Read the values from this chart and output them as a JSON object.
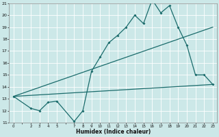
{
  "xlabel": "Humidex (Indice chaleur)",
  "background_color": "#cce8e8",
  "line_color": "#1a6b6b",
  "grid_color": "#ffffff",
  "xlim": [
    -0.5,
    23.5
  ],
  "ylim": [
    11,
    21
  ],
  "yticks": [
    11,
    12,
    13,
    14,
    15,
    16,
    17,
    18,
    19,
    20,
    21
  ],
  "xticks": [
    0,
    1,
    2,
    3,
    4,
    5,
    6,
    7,
    8,
    9,
    10,
    11,
    12,
    13,
    14,
    15,
    16,
    17,
    18,
    19,
    20,
    21,
    22,
    23
  ],
  "xticklabels": [
    "0",
    "",
    "2",
    "3",
    "4",
    "5",
    "",
    "7",
    "8",
    "9",
    "10",
    "11",
    "12",
    "13",
    "14",
    "15",
    "16",
    "17",
    "18",
    "19",
    "20",
    "21",
    "22",
    "23"
  ],
  "main_x": [
    0,
    2,
    3,
    4,
    5,
    7,
    8,
    9,
    10,
    11,
    12,
    13,
    14,
    15,
    16,
    17,
    18,
    19,
    20,
    21,
    22,
    23
  ],
  "main_y": [
    13.2,
    12.2,
    12.0,
    12.7,
    12.8,
    11.1,
    12.0,
    15.3,
    16.5,
    17.7,
    18.3,
    19.0,
    20.0,
    19.3,
    21.3,
    20.2,
    20.8,
    19.0,
    17.5,
    15.0,
    15.0,
    14.2
  ],
  "line1_x": [
    0,
    23
  ],
  "line1_y": [
    13.2,
    19.0
  ],
  "line2_x": [
    0,
    23
  ],
  "line2_y": [
    13.2,
    14.2
  ]
}
